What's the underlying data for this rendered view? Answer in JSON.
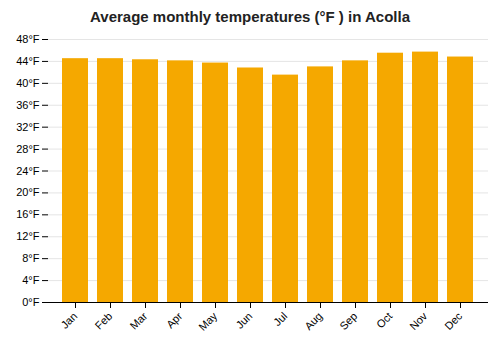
{
  "chart_data": {
    "type": "bar",
    "title": "Average monthly temperatures (°F ) in Acolla",
    "categories": [
      "Jan",
      "Feb",
      "Mar",
      "Apr",
      "May",
      "Jun",
      "Jul",
      "Aug",
      "Sep",
      "Oct",
      "Nov",
      "Dec"
    ],
    "values": [
      44.5,
      44.5,
      44.3,
      44.1,
      43.7,
      42.8,
      41.5,
      43.0,
      44.1,
      45.5,
      45.7,
      44.8
    ],
    "color": "#F5A800",
    "ylim": [
      0,
      48
    ],
    "yticks": [
      {
        "value": 0,
        "label": "0°F"
      },
      {
        "value": 4,
        "label": "4°F"
      },
      {
        "value": 8,
        "label": "8°F"
      },
      {
        "value": 12,
        "label": "12°F"
      },
      {
        "value": 16,
        "label": "16°F"
      },
      {
        "value": 20,
        "label": "20°F"
      },
      {
        "value": 24,
        "label": "24°F"
      },
      {
        "value": 28,
        "label": "28°F"
      },
      {
        "value": 32,
        "label": "32°F"
      },
      {
        "value": 36,
        "label": "36°F"
      },
      {
        "value": 40,
        "label": "40°F"
      },
      {
        "value": 44,
        "label": "44°F"
      },
      {
        "value": 48,
        "label": "48°F"
      }
    ],
    "grid": true
  }
}
